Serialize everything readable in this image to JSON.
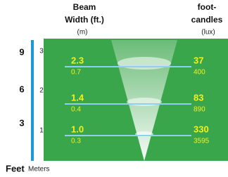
{
  "header": {
    "beam_width": [
      "Beam",
      "Width (ft.)"
    ],
    "beam_width_unit": "(m)",
    "foot_candles": [
      "foot-",
      "candles"
    ],
    "foot_candles_unit": "(lux)"
  },
  "rows": [
    {
      "feet": "9",
      "meters": "3",
      "width_ft": "2.3",
      "width_m": "0.7",
      "fc": "37",
      "lux": "400"
    },
    {
      "feet": "6",
      "meters": "2",
      "width_ft": "1.4",
      "width_m": "0.4",
      "fc": "83",
      "lux": "890"
    },
    {
      "feet": "3",
      "meters": "1",
      "width_ft": "1.0",
      "width_m": "0.3",
      "fc": "330",
      "lux": "3595"
    }
  ],
  "footer": {
    "feet": "Feet",
    "meters": "Meters"
  }
}
